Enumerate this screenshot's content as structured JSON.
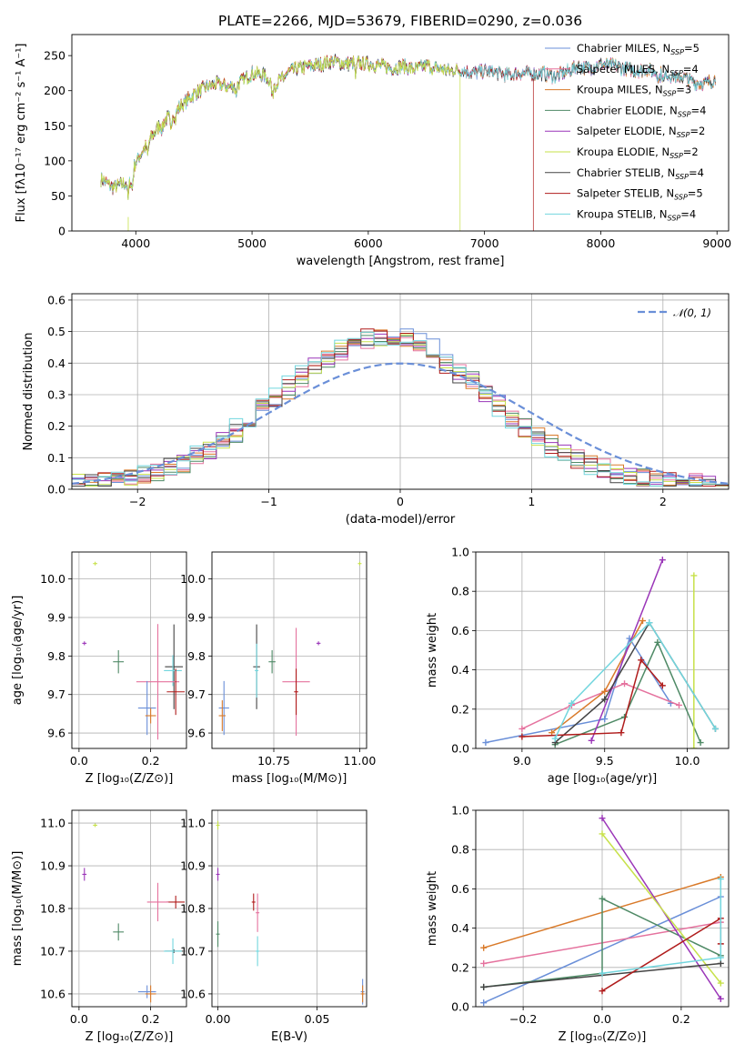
{
  "figure_title": "PLATE=2266, MJD=53679, FIBERID=0290, z=0.036",
  "models": [
    {
      "name": "Chabrier MILES, N",
      "sub": "SSP",
      "n": "=5",
      "color": "#6a8fd8"
    },
    {
      "name": "Salpeter MILES, N",
      "sub": "SSP",
      "n": "=4",
      "color": "#e5729e"
    },
    {
      "name": "Kroupa MILES, N",
      "sub": "SSP",
      "n": "=3",
      "color": "#d97a2a"
    },
    {
      "name": "Chabrier ELODIE, N",
      "sub": "SSP",
      "n": "=4",
      "color": "#4f8a66"
    },
    {
      "name": "Salpeter ELODIE, N",
      "sub": "SSP",
      "n": "=2",
      "color": "#9a35b8"
    },
    {
      "name": "Kroupa ELODIE, N",
      "sub": "SSP",
      "n": "=2",
      "color": "#c7e14a"
    },
    {
      "name": "Chabrier STELIB, N",
      "sub": "SSP",
      "n": "=4",
      "color": "#444444"
    },
    {
      "name": "Salpeter STELIB, N",
      "sub": "SSP",
      "n": "=5",
      "color": "#b01c1c"
    },
    {
      "name": "Kroupa STELIB, N",
      "sub": "SSP",
      "n": "=4",
      "color": "#72d6de"
    }
  ],
  "chart_data": [
    {
      "id": "spectrum",
      "type": "line",
      "xlabel": "wavelength [Angstrom, rest frame]",
      "ylabel": "Flux [fλ10⁻¹⁷ erg cm⁻² s⁻¹ A⁻¹]",
      "xlim": [
        3450,
        9100
      ],
      "ylim": [
        0,
        280
      ],
      "xticks": [
        "4000",
        "5000",
        "6000",
        "7000",
        "8000",
        "9000"
      ],
      "yticks": [
        "0",
        "50",
        "100",
        "150",
        "200",
        "250"
      ],
      "legend": "top-right",
      "continuum_x": [
        3700,
        3800,
        3900,
        3950,
        4000,
        4100,
        4200,
        4300,
        4400,
        4500,
        4600,
        4700,
        4800,
        4900,
        5000,
        5100,
        5200,
        5300,
        5400,
        5500,
        5600,
        5700,
        5800,
        5900,
        6000,
        6100,
        6200,
        6300,
        6400,
        6500,
        6600,
        6700,
        6800,
        6900,
        7000,
        7100,
        7200,
        7300,
        7400,
        7500,
        7600,
        7700,
        7800,
        7900,
        8000,
        8100,
        8200,
        8300,
        8400,
        8500,
        8600,
        8700,
        8800,
        8900,
        8980
      ],
      "continuum_y": [
        75,
        62,
        68,
        72,
        98,
        125,
        150,
        165,
        180,
        195,
        205,
        210,
        205,
        212,
        225,
        222,
        210,
        225,
        232,
        235,
        238,
        242,
        238,
        240,
        238,
        236,
        232,
        235,
        230,
        236,
        232,
        228,
        230,
        225,
        228,
        226,
        222,
        225,
        224,
        225,
        220,
        226,
        235,
        232,
        238,
        236,
        232,
        228,
        230,
        225,
        222,
        220,
        212,
        210,
        216
      ],
      "truncations": [
        {
          "model": "Kroupa ELODIE",
          "end_x": 6790
        },
        {
          "model": "Salpeter STELIB",
          "end_x": 7420
        }
      ]
    },
    {
      "id": "residuals",
      "type": "line",
      "xlabel": "(data-model)/error",
      "ylabel": "Normed distribution",
      "xlim": [
        -2.5,
        2.5
      ],
      "ylim": [
        0,
        0.62
      ],
      "xticks": [
        "−2",
        "−1",
        "0",
        "1",
        "2"
      ],
      "yticks": [
        "0.0",
        "0.1",
        "0.2",
        "0.3",
        "0.4",
        "0.5",
        "0.6"
      ],
      "grid": true,
      "legend": "top-right",
      "reference_label": "𝒩(0, 1)",
      "bin_width": 0.1,
      "hist_peak": 0.47
    },
    {
      "id": "age_vs_Z",
      "type": "scatter",
      "xlabel": "Z [log₁₀(Z/Z⊙)]",
      "ylabel": "age  [log₁₀(age/yr)]",
      "xlim": [
        -0.02,
        0.3
      ],
      "ylim": [
        9.56,
        10.07
      ],
      "xticks": [
        "0.0",
        "0.2"
      ],
      "yticks": [
        "9.6",
        "9.7",
        "9.8",
        "9.9",
        "10.0"
      ],
      "grid": true,
      "points": [
        {
          "model": "Kroupa ELODIE",
          "x": 0.045,
          "y": 10.04,
          "ex": 0.006,
          "ey": 0.004
        },
        {
          "model": "Salpeter ELODIE",
          "x": 0.015,
          "y": 9.833,
          "ex": 0.006,
          "ey": 0.005
        },
        {
          "model": "Chabrier ELODIE",
          "x": 0.11,
          "y": 9.785,
          "ex": 0.015,
          "ey": 0.03
        },
        {
          "model": "Chabrier STELIB",
          "x": 0.265,
          "y": 9.772,
          "ex": 0.025,
          "ey": 0.11
        },
        {
          "model": "Kroupa STELIB",
          "x": 0.262,
          "y": 9.762,
          "ex": 0.025,
          "ey": 0.04
        },
        {
          "model": "Salpeter MILES",
          "x": 0.22,
          "y": 9.733,
          "ex": 0.06,
          "ey": 0.15
        },
        {
          "model": "Salpeter STELIB",
          "x": 0.27,
          "y": 9.707,
          "ex": 0.025,
          "ey": 0.06
        },
        {
          "model": "Chabrier MILES",
          "x": 0.19,
          "y": 9.665,
          "ex": 0.025,
          "ey": 0.07
        },
        {
          "model": "Kroupa MILES",
          "x": 0.2,
          "y": 9.645,
          "ex": 0.015,
          "ey": 0.02
        }
      ]
    },
    {
      "id": "age_vs_mass",
      "type": "scatter",
      "xlabel": "mass [log₁₀(M/M⊙)]",
      "ylabel": "",
      "xlim": [
        10.57,
        11.02
      ],
      "ylim": [
        9.56,
        10.07
      ],
      "xticks": [
        "10.75",
        "11.00"
      ],
      "yticks": [
        "9.6",
        "9.7",
        "9.8",
        "9.9",
        "10.0"
      ],
      "grid": true,
      "points": [
        {
          "model": "Kroupa ELODIE",
          "x": 11.0,
          "y": 10.04,
          "ex": 0.004,
          "ey": 0.004
        },
        {
          "model": "Salpeter ELODIE",
          "x": 10.88,
          "y": 9.833,
          "ex": 0.006,
          "ey": 0.005
        },
        {
          "model": "Chabrier ELODIE",
          "x": 10.745,
          "y": 9.785,
          "ex": 0.01,
          "ey": 0.03
        },
        {
          "model": "Chabrier STELIB",
          "x": 10.7,
          "y": 9.772,
          "ex": 0.01,
          "ey": 0.11
        },
        {
          "model": "Kroupa STELIB",
          "x": 10.7,
          "y": 9.762,
          "ex": 0.005,
          "ey": 0.07
        },
        {
          "model": "Salpeter MILES",
          "x": 10.815,
          "y": 9.733,
          "ex": 0.04,
          "ey": 0.14
        },
        {
          "model": "Salpeter STELIB",
          "x": 10.815,
          "y": 9.707,
          "ex": 0.006,
          "ey": 0.06
        },
        {
          "model": "Chabrier MILES",
          "x": 10.605,
          "y": 9.665,
          "ex": 0.015,
          "ey": 0.07
        },
        {
          "model": "Kroupa MILES",
          "x": 10.6,
          "y": 9.645,
          "ex": 0.01,
          "ey": 0.04
        }
      ]
    },
    {
      "id": "weight_vs_age",
      "type": "line",
      "xlabel": "age  [log₁₀(age/yr)]",
      "ylabel": "mass weight",
      "xlim": [
        8.72,
        10.25
      ],
      "ylim": [
        0,
        1.0
      ],
      "xticks": [
        "9.0",
        "9.5",
        "10.0"
      ],
      "yticks": [
        "0.0",
        "0.2",
        "0.4",
        "0.6",
        "0.8",
        "1.0"
      ],
      "grid": true,
      "series": [
        {
          "model": "Chabrier MILES",
          "x": [
            8.78,
            9.5,
            9.65,
            9.9
          ],
          "y": [
            0.03,
            0.15,
            0.56,
            0.23
          ]
        },
        {
          "model": "Salpeter MILES",
          "x": [
            9.0,
            9.3,
            9.62,
            9.95
          ],
          "y": [
            0.1,
            0.22,
            0.33,
            0.22
          ]
        },
        {
          "model": "Kroupa MILES",
          "x": [
            9.18,
            9.5,
            9.73
          ],
          "y": [
            0.08,
            0.29,
            0.65
          ]
        },
        {
          "model": "Chabrier ELODIE",
          "x": [
            9.2,
            9.62,
            9.82,
            10.08
          ],
          "y": [
            0.02,
            0.16,
            0.54,
            0.03
          ]
        },
        {
          "model": "Salpeter ELODIE",
          "x": [
            9.42,
            9.85
          ],
          "y": [
            0.04,
            0.96
          ]
        },
        {
          "model": "Kroupa ELODIE",
          "x": [
            10.04,
            10.04
          ],
          "y": [
            0.0,
            0.88
          ]
        },
        {
          "model": "Chabrier STELIB",
          "x": [
            9.2,
            9.5,
            9.77,
            10.17
          ],
          "y": [
            0.03,
            0.25,
            0.64,
            0.1
          ]
        },
        {
          "model": "Salpeter STELIB",
          "x": [
            9.0,
            9.6,
            9.72,
            9.85
          ],
          "y": [
            0.06,
            0.08,
            0.45,
            0.32
          ]
        },
        {
          "model": "Kroupa STELIB",
          "x": [
            9.2,
            9.3,
            9.77,
            10.17
          ],
          "y": [
            0.05,
            0.23,
            0.64,
            0.1
          ]
        }
      ]
    },
    {
      "id": "mass_vs_Z",
      "type": "scatter",
      "xlabel": "Z [log₁₀(Z/Z⊙)]",
      "ylabel": "mass [log₁₀(M/M⊙)]",
      "xlim": [
        -0.02,
        0.3
      ],
      "ylim": [
        10.57,
        11.03
      ],
      "xticks": [
        "0.0",
        "0.2"
      ],
      "yticks": [
        "10.6",
        "10.7",
        "10.8",
        "10.9",
        "11.0"
      ],
      "grid": true,
      "points": [
        {
          "model": "Kroupa ELODIE",
          "x": 0.045,
          "y": 10.995,
          "ex": 0.006,
          "ey": 0.004
        },
        {
          "model": "Salpeter ELODIE",
          "x": 0.015,
          "y": 10.88,
          "ex": 0.006,
          "ey": 0.015
        },
        {
          "model": "Chabrier ELODIE",
          "x": 0.11,
          "y": 10.745,
          "ex": 0.015,
          "ey": 0.02
        },
        {
          "model": "Salpeter STELIB",
          "x": 0.27,
          "y": 10.815,
          "ex": 0.025,
          "ey": 0.015
        },
        {
          "model": "Salpeter MILES",
          "x": 0.22,
          "y": 10.815,
          "ex": 0.03,
          "ey": 0.045
        },
        {
          "model": "Chabrier STELIB",
          "x": 0.265,
          "y": 10.7,
          "ex": 0.025,
          "ey": 0.003
        },
        {
          "model": "Kroupa STELIB",
          "x": 0.262,
          "y": 10.7,
          "ex": 0.025,
          "ey": 0.03
        },
        {
          "model": "Chabrier MILES",
          "x": 0.19,
          "y": 10.605,
          "ex": 0.025,
          "ey": 0.015
        },
        {
          "model": "Kroupa MILES",
          "x": 0.2,
          "y": 10.6,
          "ex": 0.015,
          "ey": 0.02
        }
      ]
    },
    {
      "id": "mass_vs_ebv",
      "type": "scatter",
      "xlabel": "E(B-V)",
      "ylabel": "",
      "xlim": [
        -0.003,
        0.075
      ],
      "ylim": [
        10.57,
        11.03
      ],
      "xticks": [
        "0.00",
        "0.05"
      ],
      "yticks": [
        "10.6",
        "10.7",
        "10.8",
        "10.9",
        "11.0"
      ],
      "grid": true,
      "points": [
        {
          "model": "Kroupa ELODIE",
          "x": 0.0,
          "y": 10.995,
          "ex": 0.0,
          "ey": 0.01
        },
        {
          "model": "Salpeter ELODIE",
          "x": 0.0,
          "y": 10.88,
          "ex": 0.0,
          "ey": 0.015
        },
        {
          "model": "Chabrier ELODIE",
          "x": 0.0,
          "y": 10.74,
          "ex": 0.0,
          "ey": 0.03
        },
        {
          "model": "Salpeter STELIB",
          "x": 0.018,
          "y": 10.815,
          "ex": 0.0,
          "ey": 0.02
        },
        {
          "model": "Salpeter MILES",
          "x": 0.02,
          "y": 10.79,
          "ex": 0.0,
          "ey": 0.045
        },
        {
          "model": "Kroupa STELIB",
          "x": 0.02,
          "y": 10.7,
          "ex": 0.0,
          "ey": 0.035
        },
        {
          "model": "Chabrier MILES",
          "x": 0.073,
          "y": 10.605,
          "ex": 0.0,
          "ey": 0.03
        },
        {
          "model": "Kroupa MILES",
          "x": 0.073,
          "y": 10.6,
          "ex": 0.0,
          "ey": 0.02
        }
      ]
    },
    {
      "id": "weight_vs_Z",
      "type": "line",
      "xlabel": "Z [log₁₀(Z/Z⊙)]",
      "ylabel": "mass weight",
      "xlim": [
        -0.32,
        0.32
      ],
      "ylim": [
        0,
        1.0
      ],
      "xticks": [
        "−0.2",
        "0.0",
        "0.2"
      ],
      "yticks": [
        "0.0",
        "0.2",
        "0.4",
        "0.6",
        "0.8",
        "1.0"
      ],
      "grid": true,
      "series": [
        {
          "model": "Chabrier MILES",
          "x": [
            -0.3,
            0.3
          ],
          "y": [
            0.02,
            0.56
          ]
        },
        {
          "model": "Salpeter MILES",
          "x": [
            -0.3,
            0.3
          ],
          "y": [
            0.22,
            0.43
          ]
        },
        {
          "model": "Kroupa MILES",
          "x": [
            -0.3,
            0.3
          ],
          "y": [
            0.3,
            0.66
          ]
        },
        {
          "model": "Chabrier ELODIE",
          "x": [
            -0.3,
            0.0,
            0.0,
            0.3
          ],
          "y": [
            0.1,
            0.17,
            0.55,
            0.26
          ]
        },
        {
          "model": "Salpeter ELODIE",
          "x": [
            0.0,
            0.3
          ],
          "y": [
            0.96,
            0.04
          ]
        },
        {
          "model": "Kroupa ELODIE",
          "x": [
            0.0,
            0.3
          ],
          "y": [
            0.88,
            0.12
          ]
        },
        {
          "model": "Chabrier STELIB",
          "x": [
            -0.3,
            0.3
          ],
          "y": [
            0.1,
            0.22
          ]
        },
        {
          "model": "Salpeter STELIB",
          "x": [
            0.0,
            0.3,
            0.3
          ],
          "y": [
            0.08,
            0.45,
            0.32
          ]
        },
        {
          "model": "Kroupa STELIB",
          "x": [
            0.0,
            0.3,
            0.3
          ],
          "y": [
            0.17,
            0.25,
            0.65
          ]
        }
      ]
    }
  ]
}
